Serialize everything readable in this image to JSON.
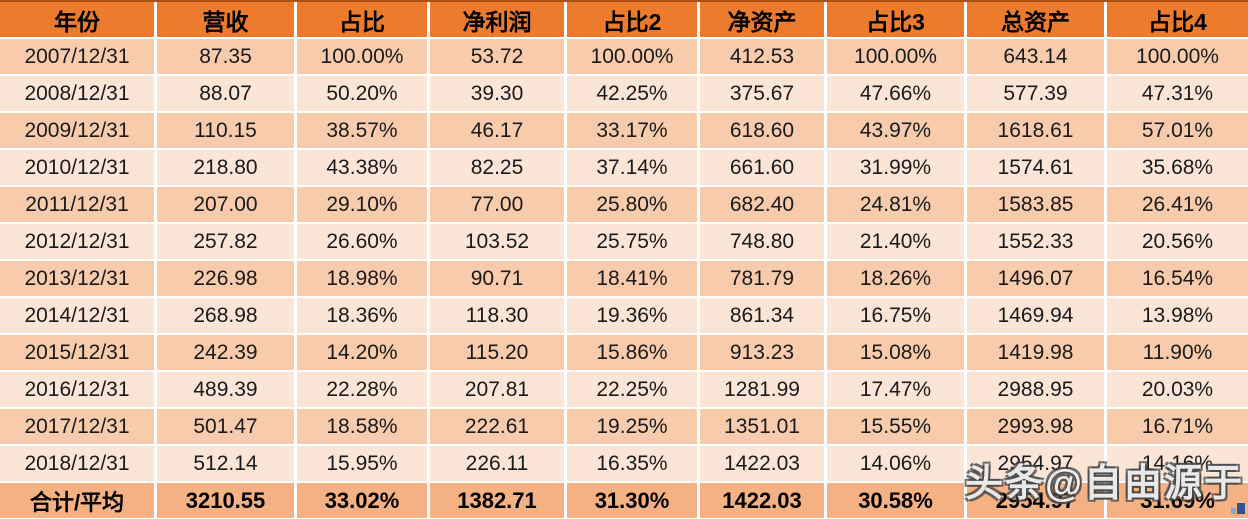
{
  "watermark": {
    "text": "头条@自由源于"
  },
  "colors": {
    "header_bg": "#EC7B2E",
    "header_text": "#000000",
    "row_odd_bg": "#F8CBAD",
    "row_even_bg": "#FBE5D6",
    "footer_bg": "#F4B183",
    "cell_text": "#1A1A1A",
    "top_border": "#AD5217",
    "mark_blue_dark": "#2F5597",
    "mark_blue_light": "#7FA8D9"
  },
  "chart_data": {
    "type": "table",
    "columns": [
      "年份",
      "营收",
      "占比",
      "净利润",
      "占比2",
      "净资产",
      "占比3",
      "总资产",
      "占比4"
    ],
    "rows": [
      [
        "2007/12/31",
        "87.35",
        "100.00%",
        "53.72",
        "100.00%",
        "412.53",
        "100.00%",
        "643.14",
        "100.00%"
      ],
      [
        "2008/12/31",
        "88.07",
        "50.20%",
        "39.30",
        "42.25%",
        "375.67",
        "47.66%",
        "577.39",
        "47.31%"
      ],
      [
        "2009/12/31",
        "110.15",
        "38.57%",
        "46.17",
        "33.17%",
        "618.60",
        "43.97%",
        "1618.61",
        "57.01%"
      ],
      [
        "2010/12/31",
        "218.80",
        "43.38%",
        "82.25",
        "37.14%",
        "661.60",
        "31.99%",
        "1574.61",
        "35.68%"
      ],
      [
        "2011/12/31",
        "207.00",
        "29.10%",
        "77.00",
        "25.80%",
        "682.40",
        "24.81%",
        "1583.85",
        "26.41%"
      ],
      [
        "2012/12/31",
        "257.82",
        "26.60%",
        "103.52",
        "25.75%",
        "748.80",
        "21.40%",
        "1552.33",
        "20.56%"
      ],
      [
        "2013/12/31",
        "226.98",
        "18.98%",
        "90.71",
        "18.41%",
        "781.79",
        "18.26%",
        "1496.07",
        "16.54%"
      ],
      [
        "2014/12/31",
        "268.98",
        "18.36%",
        "118.30",
        "19.36%",
        "861.34",
        "16.75%",
        "1469.94",
        "13.98%"
      ],
      [
        "2015/12/31",
        "242.39",
        "14.20%",
        "115.20",
        "15.86%",
        "913.23",
        "15.08%",
        "1419.98",
        "11.90%"
      ],
      [
        "2016/12/31",
        "489.39",
        "22.28%",
        "207.81",
        "22.25%",
        "1281.99",
        "17.47%",
        "2988.95",
        "20.03%"
      ],
      [
        "2017/12/31",
        "501.47",
        "18.58%",
        "222.61",
        "19.25%",
        "1351.01",
        "15.55%",
        "2993.98",
        "16.71%"
      ],
      [
        "2018/12/31",
        "512.14",
        "15.95%",
        "226.11",
        "16.35%",
        "1422.03",
        "14.06%",
        "2954.97",
        "14.16%"
      ]
    ],
    "footer": [
      "合计/平均",
      "3210.55",
      "33.02%",
      "1382.71",
      "31.30%",
      "1422.03",
      "30.58%",
      "2954.97",
      "31.69%"
    ]
  }
}
